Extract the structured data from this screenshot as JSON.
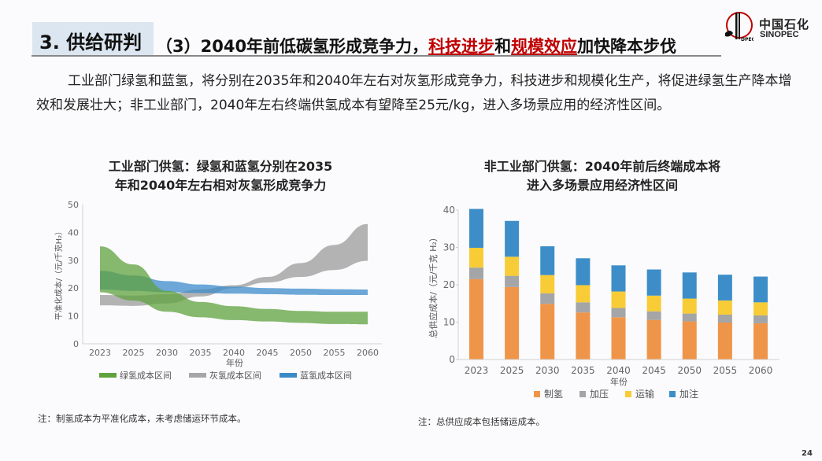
{
  "header": {
    "section_label": "3. 供给研判",
    "headline_parts": [
      {
        "text": "（3）2040年前低碳氢形成竞争力，",
        "emphasis": false
      },
      {
        "text": "科技进步",
        "emphasis": true
      },
      {
        "text": "和",
        "emphasis": false
      },
      {
        "text": "规模效应",
        "emphasis": true
      },
      {
        "text": "加快降本步伐",
        "emphasis": false
      }
    ],
    "logo_cn": "中国石化",
    "logo_en": "SINOPEC",
    "accent_color": "#c00000"
  },
  "paragraph": "工业部门绿氢和蓝氢，将分别在2035年和2040年左右对灰氢形成竞争力，科技进步和规模化生产，将促进绿氢生产降本增效和发展壮大；非工业部门，2040年左右终端供氢成本有望降至25元/kg，进入多场景应用的经济性区间。",
  "chart_data": [
    {
      "type": "area",
      "title_lines": [
        "工业部门供氢：绿氢和蓝氢分别在2035",
        "年和2040年左右相对灰氢形成竞争力"
      ],
      "xlabel": "年份",
      "ylabel": "平准化成本/（元/千克H₂）",
      "categories": [
        "2023",
        "2025",
        "2030",
        "2035",
        "2040",
        "2045",
        "2050",
        "2055",
        "2060"
      ],
      "ylim": [
        0,
        50
      ],
      "yticks": [
        0,
        10,
        20,
        30,
        40,
        50
      ],
      "grid": false,
      "legend_position": "bottom",
      "series": [
        {
          "name": "灰氢成本区间",
          "color": "#a6a6a6",
          "opacity": 0.85,
          "low": [
            13.8,
            13.6,
            14.5,
            17.0,
            20.0,
            22.0,
            24.0,
            26.5,
            29.8
          ],
          "high": [
            17.5,
            17.3,
            17.8,
            19.5,
            21.0,
            24.0,
            29.0,
            35.5,
            43.0
          ]
        },
        {
          "name": "蓝氢成本区间",
          "color": "#3c8bc9",
          "opacity": 0.75,
          "low": [
            19.5,
            19.0,
            18.5,
            18.2,
            18.0,
            17.8,
            17.6,
            17.5,
            17.5
          ],
          "high": [
            26.2,
            24.5,
            22.5,
            21.3,
            20.5,
            20.0,
            19.8,
            19.6,
            19.5
          ]
        },
        {
          "name": "绿氢成本区间",
          "color": "#5fa23e",
          "opacity": 0.75,
          "low": [
            18.5,
            15.5,
            11.5,
            9.5,
            8.5,
            8.0,
            7.5,
            7.1,
            7.0
          ],
          "high": [
            35.0,
            28.5,
            19.0,
            15.0,
            13.5,
            12.5,
            11.8,
            11.5,
            11.5
          ]
        }
      ],
      "legend_order": [
        "绿氢成本区间",
        "灰氢成本区间",
        "蓝氢成本区间"
      ],
      "note": "注：制氢成本为平准化成本，未考虑储运环节成本。"
    },
    {
      "type": "bar",
      "stacked": true,
      "title_lines": [
        "非工业部门供氢：2040年前后终端成本将",
        "进入多场景应用经济性区间"
      ],
      "xlabel": "年份",
      "ylabel": "总供应成本/（元/千克 H₂）",
      "categories": [
        "2023",
        "2025",
        "2030",
        "2035",
        "2040",
        "2045",
        "2050",
        "2055",
        "2060"
      ],
      "ylim": [
        0,
        40
      ],
      "yticks": [
        0,
        10,
        20,
        30,
        40
      ],
      "grid": false,
      "legend_position": "bottom",
      "series": [
        {
          "name": "制氢",
          "color": "#ef9549",
          "values": [
            21.5,
            19.4,
            14.9,
            12.6,
            11.3,
            10.6,
            10.2,
            9.9,
            9.7
          ]
        },
        {
          "name": "加压",
          "color": "#a3a5a7",
          "values": [
            3.1,
            3.0,
            2.8,
            2.7,
            2.5,
            2.3,
            2.1,
            2.1,
            2.1
          ]
        },
        {
          "name": "运输",
          "color": "#f8cc37",
          "values": [
            5.3,
            5.1,
            4.9,
            4.6,
            4.4,
            4.2,
            4.0,
            3.8,
            3.5
          ]
        },
        {
          "name": "加注",
          "color": "#3d8ec8",
          "values": [
            10.4,
            9.6,
            7.7,
            7.2,
            7.0,
            7.0,
            7.0,
            6.9,
            6.9
          ]
        }
      ],
      "note": "注：总供应成本包括储运成本。"
    }
  ],
  "page_number": "24"
}
